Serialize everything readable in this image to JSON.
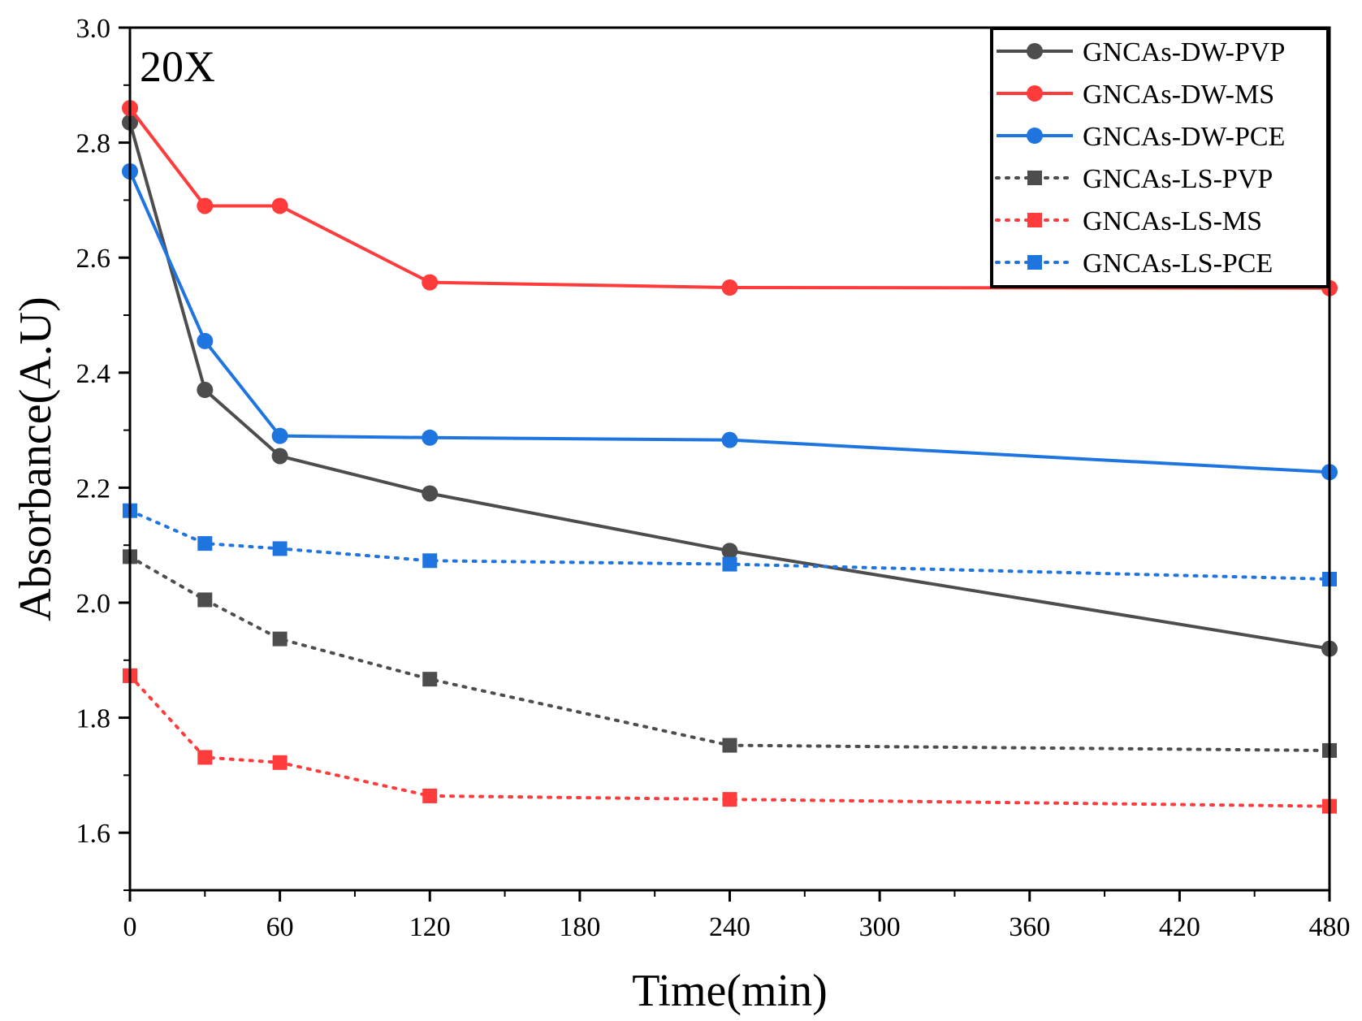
{
  "chart_data": {
    "type": "line",
    "title": "",
    "panel_label": "20X",
    "xlabel": "Time(min)",
    "ylabel": "Absorbance(A.U)",
    "xlim": [
      0,
      480
    ],
    "ylim": [
      1.5,
      3.0
    ],
    "xticks": [
      0,
      60,
      120,
      180,
      240,
      300,
      360,
      420,
      480
    ],
    "xtick_labels": [
      "0",
      "60",
      "120",
      "180",
      "240",
      "300",
      "360",
      "420",
      "480"
    ],
    "yticks": [
      1.6,
      1.8,
      2.0,
      2.2,
      2.4,
      2.6,
      2.8,
      3.0
    ],
    "ytick_labels": [
      "1.6",
      "1.8",
      "2.0",
      "2.2",
      "2.4",
      "2.6",
      "2.8",
      "3.0"
    ],
    "grid": false,
    "legend_position": "top-right",
    "x": [
      0,
      30,
      60,
      120,
      240,
      480
    ],
    "series": [
      {
        "name": "GNCAs-DW-PVP",
        "color": "#4d4d4d",
        "line": "solid",
        "marker": "circle",
        "values": [
          2.835,
          2.37,
          2.255,
          2.19,
          2.09,
          1.92
        ]
      },
      {
        "name": "GNCAs-DW-MS",
        "color": "#ff3b3b",
        "line": "solid",
        "marker": "circle",
        "values": [
          2.86,
          2.69,
          2.69,
          2.557,
          2.548,
          2.547
        ]
      },
      {
        "name": "GNCAs-DW-PCE",
        "color": "#1f75e0",
        "line": "solid",
        "marker": "circle",
        "values": [
          2.75,
          2.455,
          2.29,
          2.287,
          2.283,
          2.227
        ]
      },
      {
        "name": "GNCAs-LS-PVP",
        "color": "#4d4d4d",
        "line": "dotted",
        "marker": "square",
        "values": [
          2.08,
          2.005,
          1.937,
          1.867,
          1.752,
          1.743
        ]
      },
      {
        "name": "GNCAs-LS-MS",
        "color": "#ff3b3b",
        "line": "dotted",
        "marker": "square",
        "values": [
          1.873,
          1.731,
          1.722,
          1.664,
          1.658,
          1.646
        ]
      },
      {
        "name": "GNCAs-LS-PCE",
        "color": "#1f75e0",
        "line": "dotted",
        "marker": "square",
        "values": [
          2.16,
          2.103,
          2.094,
          2.073,
          2.067,
          2.041
        ]
      }
    ]
  }
}
